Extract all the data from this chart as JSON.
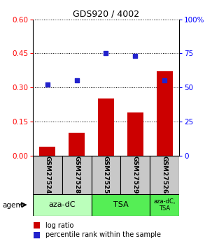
{
  "title": "GDS920 / 4002",
  "samples": [
    "GSM27524",
    "GSM27528",
    "GSM27525",
    "GSM27529",
    "GSM27526"
  ],
  "log_ratio": [
    0.04,
    0.1,
    0.25,
    0.19,
    0.37
  ],
  "percentile_rank": [
    52,
    55,
    75,
    73,
    55
  ],
  "left_ylim": [
    0,
    0.6
  ],
  "right_ylim": [
    0,
    100
  ],
  "left_yticks": [
    0,
    0.15,
    0.3,
    0.45,
    0.6
  ],
  "right_yticks": [
    0,
    25,
    50,
    75,
    100
  ],
  "right_yticklabels": [
    "0",
    "25",
    "50",
    "75",
    "100%"
  ],
  "bar_color": "#cc0000",
  "point_color": "#2222cc",
  "group_ranges": [
    [
      0,
      2
    ],
    [
      2,
      4
    ],
    [
      4,
      5
    ]
  ],
  "group_labels": [
    "aza-dC",
    "TSA",
    "aza-dC,\nTSA"
  ],
  "group_colors": [
    "#bbffbb",
    "#55ee55",
    "#55ee55"
  ],
  "legend_bar_label": "log ratio",
  "legend_point_label": "percentile rank within the sample",
  "sample_box_color": "#c8c8c8",
  "title_fontsize": 9,
  "tick_fontsize": 7.5,
  "bar_label_fontsize": 6.5,
  "legend_fontsize": 7
}
